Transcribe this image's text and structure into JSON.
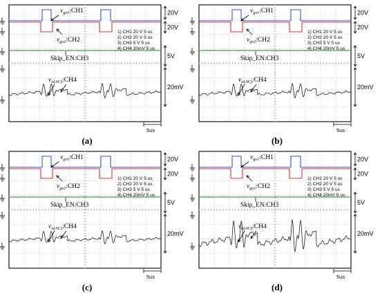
{
  "colors": {
    "ch1": "#3b4fe0",
    "ch2": "#e23030",
    "ch3": "#2e9a3a",
    "ch4": "#222222",
    "grid": "#9a9a9a"
  },
  "chart_data": [
    {
      "type": "line",
      "caption": "(a)",
      "traces": [
        {
          "name": "v_gs1:CH1",
          "label_main": "v",
          "label_sub": "gs1",
          "label_suffix": ":CH1",
          "scale": "20V",
          "level_low": 0,
          "level_high": 1
        },
        {
          "name": "v_gs2:CH2",
          "label_main": "v",
          "label_sub": "gs2",
          "label_suffix": ":CH2",
          "scale": "20V",
          "level_low": 0,
          "level_high": 1
        },
        {
          "name": "Skip_EN:CH3",
          "label_main": "Skip_EN:CH3",
          "label_sub": "",
          "label_suffix": "",
          "scale": "5V"
        },
        {
          "name": "v_o(AC):CH4",
          "label_main": "v",
          "label_sub": "o(AC)",
          "label_suffix": ":CH4",
          "scale": "20mV",
          "ripple_amplitude": 1.0
        }
      ],
      "settings": [
        "1) CH1  20  V    5 us",
        "2) CH2  20  V    5 us",
        "3) CH3  5  V    5 us",
        "4) CH4  20mV   5 us"
      ],
      "time_scale": "5us",
      "grid": true
    },
    {
      "type": "line",
      "caption": "(b)",
      "traces": [
        {
          "name": "v_gs1:CH1",
          "label_main": "v",
          "label_sub": "gs1",
          "label_suffix": ":CH1",
          "scale": "20V",
          "level_low": 0,
          "level_high": 1
        },
        {
          "name": "v_gs2:CH2",
          "label_main": "v",
          "label_sub": "gs2",
          "label_suffix": ":CH2",
          "scale": "20V",
          "level_low": 0,
          "level_high": 1
        },
        {
          "name": "Skip_EN:CH3",
          "label_main": "Skip_EN:CH3",
          "label_sub": "",
          "label_suffix": "",
          "scale": "5V"
        },
        {
          "name": "v_o(AC):CH4",
          "label_main": "v",
          "label_sub": "o(AC)",
          "label_suffix": ":CH4",
          "scale": "20mV",
          "ripple_amplitude": 1.0
        }
      ],
      "settings": [
        "1) CH1  20  V    5 us",
        "2) CH2  20  V    5 us",
        "3) CH3  5  V    5 us",
        "4) CH4  20mV   5 us"
      ],
      "time_scale": "5us",
      "grid": true
    },
    {
      "type": "line",
      "caption": "(c)",
      "traces": [
        {
          "name": "v_gs1:CH1",
          "label_main": "v",
          "label_sub": "gs1",
          "label_suffix": ":CH1",
          "scale": "20V",
          "level_low": 0,
          "level_high": 1
        },
        {
          "name": "v_gs2:CH2",
          "label_main": "v",
          "label_sub": "gs2",
          "label_suffix": ":CH2",
          "scale": "20V",
          "level_low": 0,
          "level_high": 1
        },
        {
          "name": "Skip_EN:CH3",
          "label_main": "Skip_EN:CH3",
          "label_sub": "",
          "label_suffix": "",
          "scale": "5V"
        },
        {
          "name": "v_o(AC):CH4",
          "label_main": "v",
          "label_sub": "o(AC)",
          "label_suffix": ":CH4",
          "scale": "20mV",
          "ripple_amplitude": 0.9
        }
      ],
      "settings": [
        "1) CH1  20  V    5 us",
        "2) CH2  20  V    5 us",
        "3) CH3  5  V    5 us",
        "4) CH4  20mV   5 us"
      ],
      "time_scale": "5us",
      "grid": true
    },
    {
      "type": "line",
      "caption": "(d)",
      "traces": [
        {
          "name": "v_gs1:CH1",
          "label_main": "v",
          "label_sub": "gs1",
          "label_suffix": ":CH1",
          "scale": "20V",
          "level_low": 0,
          "level_high": 1
        },
        {
          "name": "v_gs2:CH2",
          "label_main": "v",
          "label_sub": "gs2",
          "label_suffix": ":CH2",
          "scale": "20V",
          "level_low": 0,
          "level_high": 1
        },
        {
          "name": "Skip_EN:CH3",
          "label_main": "Skip_EN:CH3",
          "label_sub": "",
          "label_suffix": "",
          "scale": "5V"
        },
        {
          "name": "v_o(AC):CH4",
          "label_main": "v",
          "label_sub": "o(AC)",
          "label_suffix": ":CH4",
          "scale": "20mV",
          "ripple_amplitude": 2.2
        }
      ],
      "settings": [
        "1) CH1  20  V    5 us",
        "2) CH2  20  V    5 us",
        "3) CH3  5  V    5 us",
        "4) CH4  20mV   5 us"
      ],
      "time_scale": "5us",
      "grid": true
    }
  ]
}
